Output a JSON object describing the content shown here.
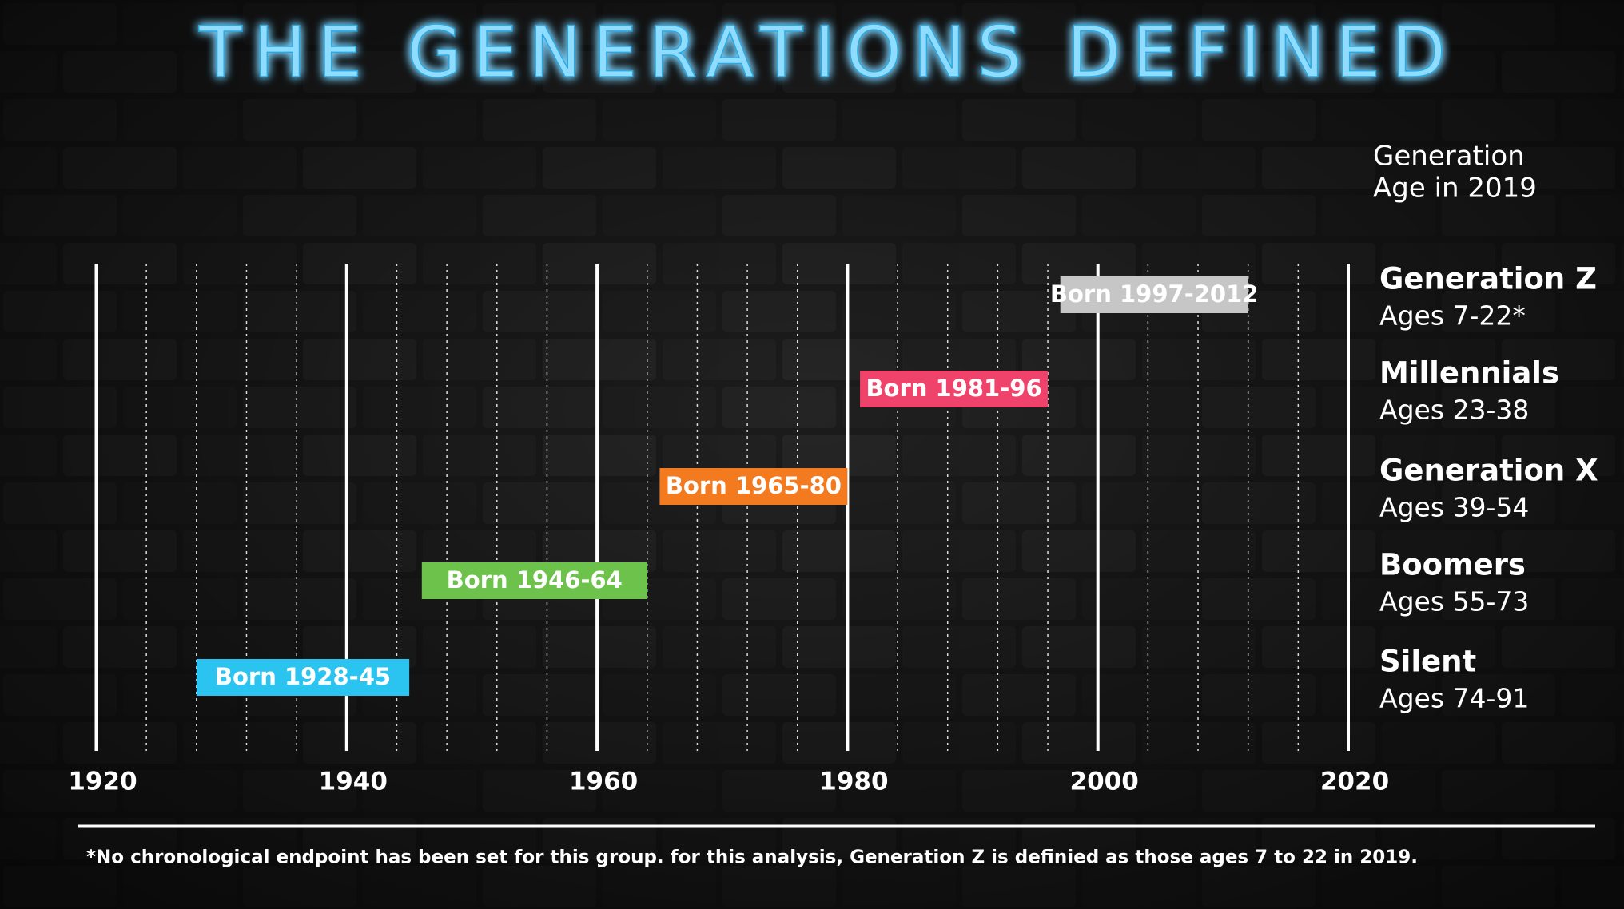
{
  "chart_data": {
    "type": "timeline",
    "title": "THE GENERATIONS DEFINED",
    "legend_header": [
      "Generation",
      "Age in 2019"
    ],
    "categories": [
      "Generation Z",
      "Millennials",
      "Generation X",
      "Boomers",
      "Silent"
    ],
    "ages": [
      "Ages 7-22*",
      "Ages 23-38",
      "Ages 39-54",
      "Ages 55-73",
      "Ages 74-91"
    ],
    "start": [
      1997,
      1981,
      1965,
      1946,
      1928
    ],
    "end": [
      2012,
      1996,
      1980,
      1964,
      1945
    ],
    "value_labels": [
      "Born 1997-2012",
      "Born 1981-96",
      "Born 1965-80",
      "Born 1946-64",
      "Born 1928-45"
    ],
    "colors": [
      "#c6c6c6",
      "#f0436b",
      "#f47a20",
      "#6cc24a",
      "#2bc4f0"
    ],
    "xlim": [
      1920,
      2020
    ],
    "xticks": [
      1920,
      1940,
      1960,
      1980,
      2000,
      2020
    ],
    "grid": true,
    "footnote": "*No chronological endpoint has been set for this group. for this analysis, Generation Z is definied as those ages 7 to 22 in 2019."
  }
}
